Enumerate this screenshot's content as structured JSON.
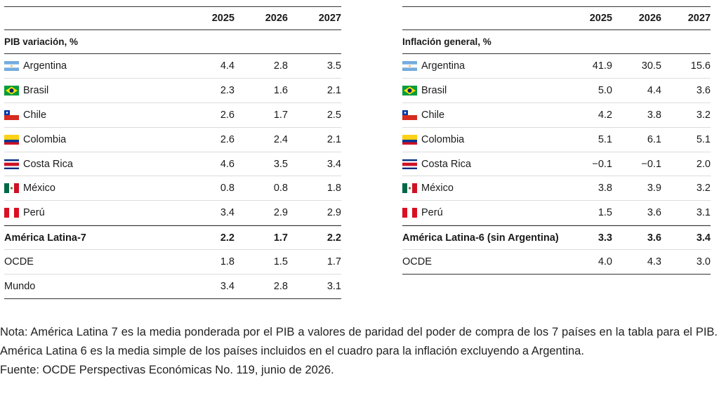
{
  "gdp_table": {
    "years": [
      "2025",
      "2026",
      "2027"
    ],
    "section_title": "PIB variación, %",
    "rows": [
      {
        "flag": "argentina-flag",
        "name": "Argentina",
        "values": [
          "4.4",
          "2.8",
          "3.5"
        ]
      },
      {
        "flag": "brazil-flag",
        "name": "Brasil",
        "values": [
          "2.3",
          "1.6",
          "2.1"
        ]
      },
      {
        "flag": "chile-flag",
        "name": "Chile",
        "values": [
          "2.6",
          "1.7",
          "2.5"
        ]
      },
      {
        "flag": "colombia-flag",
        "name": "Colombia",
        "values": [
          "2.6",
          "2.4",
          "2.1"
        ]
      },
      {
        "flag": "costa-rica-flag",
        "name": "Costa Rica",
        "values": [
          "4.6",
          "3.5",
          "3.4"
        ]
      },
      {
        "flag": "mexico-flag",
        "name": "México",
        "values": [
          "0.8",
          "0.8",
          "1.8"
        ]
      },
      {
        "flag": "peru-flag",
        "name": "Perú",
        "values": [
          "3.4",
          "2.9",
          "2.9"
        ]
      }
    ],
    "aggregate": {
      "name": "América Latina-7",
      "values": [
        "2.2",
        "1.7",
        "2.2"
      ]
    },
    "extra_rows": [
      {
        "name": "OCDE",
        "values": [
          "1.8",
          "1.5",
          "1.7"
        ]
      },
      {
        "name": "Mundo",
        "values": [
          "3.4",
          "2.8",
          "3.1"
        ]
      }
    ]
  },
  "inflation_table": {
    "years": [
      "2025",
      "2026",
      "2027"
    ],
    "section_title": "Inflación general, %",
    "rows": [
      {
        "flag": "argentina-flag",
        "name": "Argentina",
        "values": [
          "41.9",
          "30.5",
          "15.6"
        ]
      },
      {
        "flag": "brazil-flag",
        "name": "Brasil",
        "values": [
          "5.0",
          "4.4",
          "3.6"
        ]
      },
      {
        "flag": "chile-flag",
        "name": "Chile",
        "values": [
          "4.2",
          "3.8",
          "3.2"
        ]
      },
      {
        "flag": "colombia-flag",
        "name": "Colombia",
        "values": [
          "5.1",
          "6.1",
          "5.1"
        ]
      },
      {
        "flag": "costa-rica-flag",
        "name": "Costa Rica",
        "values": [
          "−0.1",
          "−0.1",
          "2.0"
        ]
      },
      {
        "flag": "mexico-flag",
        "name": "México",
        "values": [
          "3.8",
          "3.9",
          "3.2"
        ]
      },
      {
        "flag": "peru-flag",
        "name": "Perú",
        "values": [
          "1.5",
          "3.6",
          "3.1"
        ]
      }
    ],
    "aggregate": {
      "name": "América Latina-6 (sin Argentina)",
      "values": [
        "3.3",
        "3.6",
        "3.4"
      ]
    },
    "extra_rows": [
      {
        "name": "OCDE",
        "values": [
          "4.0",
          "4.3",
          "3.0"
        ]
      }
    ]
  },
  "note": {
    "text": "Nota: América Latina 7 es la media ponderada por el PIB a valores de paridad del poder de compra de los 7 países en la tabla para el PIB. América Latina 6 es la media simple de los países incluidos en el cuadro para la inflación excluyendo a Argentina.",
    "source": "Fuente: OCDE Perspectivas Económicas No. 119, junio de 2026."
  }
}
